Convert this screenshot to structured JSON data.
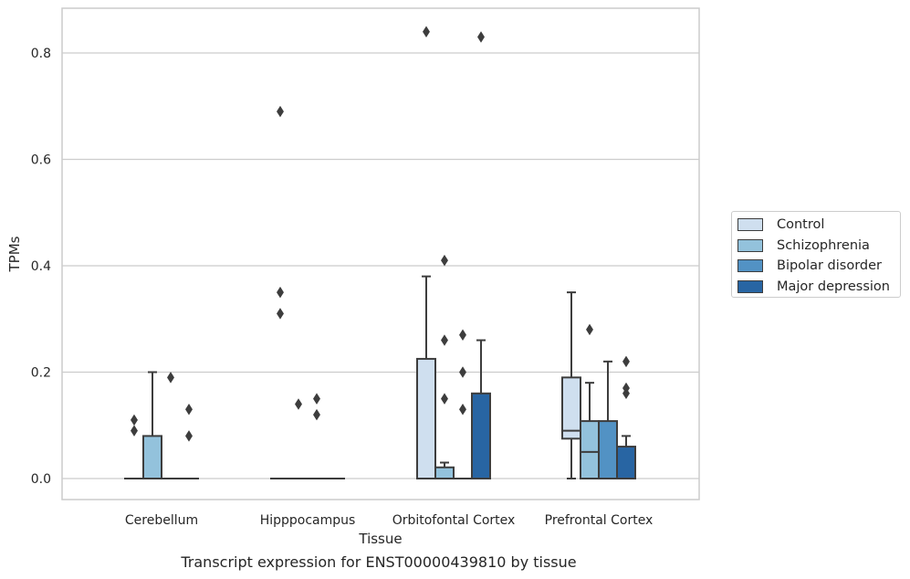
{
  "chart_data": {
    "type": "box",
    "caption": "Transcript expression for ENST00000439810 by tissue",
    "xlabel": "Tissue",
    "ylabel": "TPMs",
    "ylim": [
      -0.04,
      0.88
    ],
    "yticks": [
      "0.0",
      "0.2",
      "0.4",
      "0.6",
      "0.8"
    ],
    "grid": true,
    "legend_position": "right",
    "categories": [
      "Cerebellum",
      "Hipppocampus",
      "Orbitofontal Cortex",
      "Prefrontal Cortex"
    ],
    "series": [
      {
        "name": "Control",
        "color": "#cfdfef",
        "boxes": [
          {
            "q1": 0,
            "median": 0,
            "q3": 0,
            "whisker_low": 0,
            "whisker_high": 0,
            "outliers": [
              0.09,
              0.11
            ]
          },
          {
            "q1": 0,
            "median": 0,
            "q3": 0,
            "whisker_low": 0,
            "whisker_high": 0,
            "outliers": [
              0.31,
              0.35,
              0.69
            ]
          },
          {
            "q1": 0,
            "median": 0,
            "q3": 0.225,
            "whisker_low": 0,
            "whisker_high": 0.38,
            "outliers": [
              0.84
            ]
          },
          {
            "q1": 0.075,
            "median": 0.09,
            "q3": 0.19,
            "whisker_low": 0,
            "whisker_high": 0.35,
            "outliers": []
          }
        ]
      },
      {
        "name": "Schizophrenia",
        "color": "#93c2dc",
        "boxes": [
          {
            "q1": 0,
            "median": 0,
            "q3": 0.08,
            "whisker_low": 0,
            "whisker_high": 0.2,
            "outliers": []
          },
          {
            "q1": 0,
            "median": 0,
            "q3": 0,
            "whisker_low": 0,
            "whisker_high": 0,
            "outliers": [
              0.14
            ]
          },
          {
            "q1": 0,
            "median": 0,
            "q3": 0.021,
            "whisker_low": 0,
            "whisker_high": 0.03,
            "outliers": [
              0.15,
              0.26,
              0.41
            ]
          },
          {
            "q1": 0,
            "median": 0.05,
            "q3": 0.108,
            "whisker_low": 0,
            "whisker_high": 0.18,
            "outliers": [
              0.28
            ]
          }
        ]
      },
      {
        "name": "Bipolar disorder",
        "color": "#5292c4",
        "boxes": [
          {
            "q1": 0,
            "median": 0,
            "q3": 0,
            "whisker_low": 0,
            "whisker_high": 0,
            "outliers": [
              0.19
            ]
          },
          {
            "q1": 0,
            "median": 0,
            "q3": 0,
            "whisker_low": 0,
            "whisker_high": 0,
            "outliers": [
              0.12,
              0.15
            ]
          },
          {
            "q1": 0,
            "median": 0,
            "q3": 0,
            "whisker_low": 0,
            "whisker_high": 0,
            "outliers": [
              0.13,
              0.2,
              0.27
            ]
          },
          {
            "q1": 0,
            "median": 0,
            "q3": 0.108,
            "whisker_low": 0,
            "whisker_high": 0.22,
            "outliers": []
          }
        ]
      },
      {
        "name": "Major depression",
        "color": "#2865a3",
        "boxes": [
          {
            "q1": 0,
            "median": 0,
            "q3": 0,
            "whisker_low": 0,
            "whisker_high": 0,
            "outliers": [
              0.08,
              0.13
            ]
          },
          {
            "q1": 0,
            "median": 0,
            "q3": 0,
            "whisker_low": 0,
            "whisker_high": 0,
            "outliers": []
          },
          {
            "q1": 0,
            "median": 0,
            "q3": 0.16,
            "whisker_low": 0,
            "whisker_high": 0.26,
            "outliers": [
              0.83
            ]
          },
          {
            "q1": 0,
            "median": 0,
            "q3": 0.06,
            "whisker_low": 0,
            "whisker_high": 0.08,
            "outliers": [
              0.16,
              0.17,
              0.22
            ]
          }
        ]
      }
    ]
  }
}
